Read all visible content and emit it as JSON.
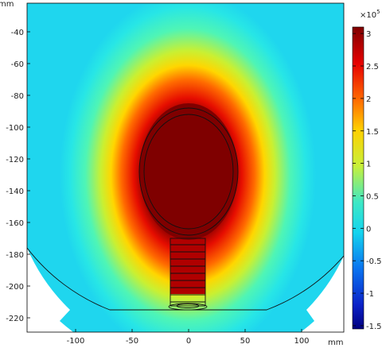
{
  "chart_data": {
    "type": "heatmap",
    "title": "",
    "xlabel": "mm",
    "ylabel": "mm",
    "xlim": [
      -140,
      130
    ],
    "ylim": [
      -229,
      -26
    ],
    "x_ticks": [
      -100,
      -50,
      0,
      50,
      100
    ],
    "x_tick_labels": [
      "-100",
      "-50",
      "0",
      "50",
      "100"
    ],
    "y_ticks": [
      -40,
      -60,
      -80,
      -100,
      -120,
      -140,
      -160,
      -180,
      -200,
      -220
    ],
    "y_tick_labels": [
      "-40",
      "-60",
      "-80",
      "-100",
      "-120",
      "-140",
      "-160",
      "-180",
      "-200",
      "-220"
    ],
    "colorbar": {
      "multiplier_label": "×10",
      "multiplier_exponent": "5",
      "range": [
        -1.55,
        3.1
      ],
      "ticks": [
        3,
        2.5,
        2,
        1.5,
        1,
        0.5,
        0,
        -0.5,
        -1,
        -1.5
      ],
      "tick_labels": [
        "3",
        "2.5",
        "2",
        "1.5",
        "1",
        "0.5",
        "0",
        "-0.5",
        "-1",
        "-1.5"
      ],
      "colormap": "rainbow (dark blue → cyan → yellow → red → dark red)"
    },
    "field": {
      "domain_shape": "truncated disc with flat base",
      "hot_region": "ellipse centred near (0, -130) mm, ~85 mm wide × ~80 mm tall",
      "stem": "narrow ladder-like channel from y ≈ -170 to y ≈ -213 mm, x ≈ -15 to 15 mm",
      "max_value_e5": 3.1,
      "background_value_e5": 0.0
    }
  }
}
